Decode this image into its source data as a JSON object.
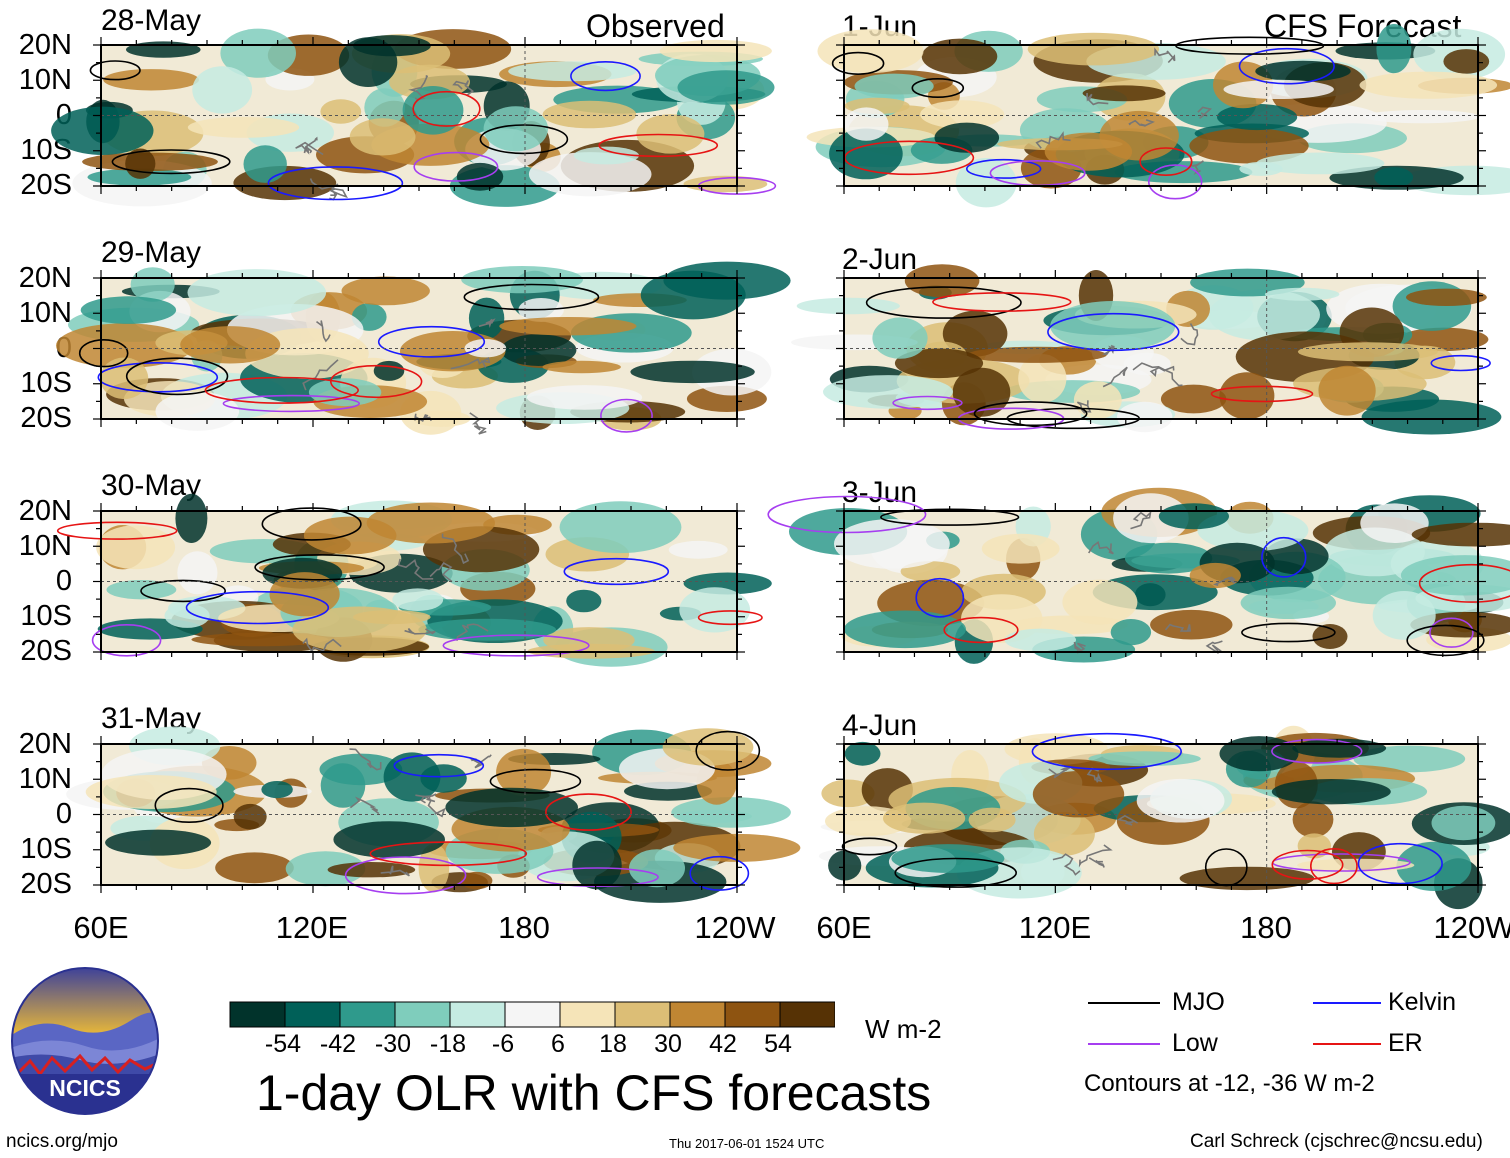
{
  "title": "1-day OLR with CFS forecasts",
  "columns": {
    "observed": "Observed",
    "forecast": "CFS Forecast"
  },
  "observed_dates": [
    "28-May",
    "29-May",
    "30-May",
    "31-May"
  ],
  "forecast_dates": [
    "1-Jun",
    "2-Jun",
    "3-Jun",
    "4-Jun"
  ],
  "lat_labels": [
    "20N",
    "10N",
    "0",
    "10S",
    "20S"
  ],
  "lon_labels": [
    "60E",
    "120E",
    "180",
    "120W"
  ],
  "colorbar": {
    "ticks": [
      "-54",
      "-42",
      "-30",
      "-18",
      "-6",
      "6",
      "18",
      "30",
      "42",
      "54"
    ],
    "colors": [
      "#01332b",
      "#006058",
      "#2f9a8c",
      "#7fcdbc",
      "#c5ebe2",
      "#f5f5f5",
      "#f5e4b8",
      "#dcbe76",
      "#c08633",
      "#8e5411",
      "#563205"
    ],
    "units": "W m-2"
  },
  "legend": {
    "items": [
      {
        "label": "MJO",
        "color": "#000000"
      },
      {
        "label": "Kelvin",
        "color": "#1a1aff"
      },
      {
        "label": "Low",
        "color": "#a63ef0"
      },
      {
        "label": "ER",
        "color": "#e61414"
      }
    ],
    "note": "Contours at -12, -36 W m-2"
  },
  "logo": {
    "text": "NCICS"
  },
  "footer": {
    "left": "ncics.org/mjo",
    "center": "Thu 2017-06-01 1524 UTC",
    "right": "Carl Schreck (cjschrec@ncsu.edu)"
  }
}
